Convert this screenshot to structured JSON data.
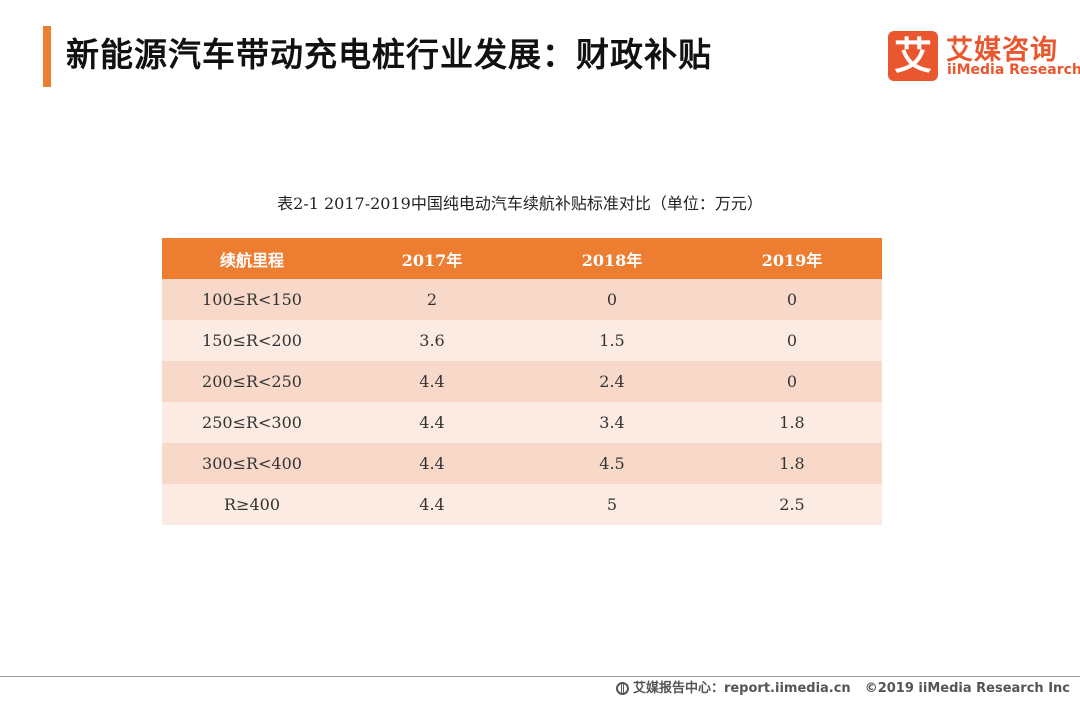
{
  "header": {
    "title": "新能源汽车带动充电桩行业发展：财政补贴"
  },
  "logo": {
    "mark": "艾",
    "name_cn": "艾媒咨询",
    "name_en": "iiMedia Research"
  },
  "table": {
    "caption": "表2-1 2017-2019中国纯电动汽车续航补贴标准对比（单位：万元）",
    "columns": [
      "续航里程",
      "2017年",
      "2018年",
      "2019年"
    ],
    "rows": [
      [
        "100≤R<150",
        "2",
        "0",
        "0"
      ],
      [
        "150≤R<200",
        "3.6",
        "1.5",
        "0"
      ],
      [
        "200≤R<250",
        "4.4",
        "2.4",
        "0"
      ],
      [
        "250≤R<300",
        "4.4",
        "3.4",
        "1.8"
      ],
      [
        "300≤R<400",
        "4.4",
        "4.5",
        "1.8"
      ],
      [
        "R≥400",
        "4.4",
        "5",
        "2.5"
      ]
    ]
  },
  "footer": {
    "source": "艾媒报告中心：report.iimedia.cn",
    "copyright": "©2019  iiMedia Research  Inc"
  },
  "colors": {
    "accent": "#ed7d31",
    "logo": "#e9572e",
    "row_dark": "#f8d9c9",
    "row_light": "#fbebe3"
  }
}
